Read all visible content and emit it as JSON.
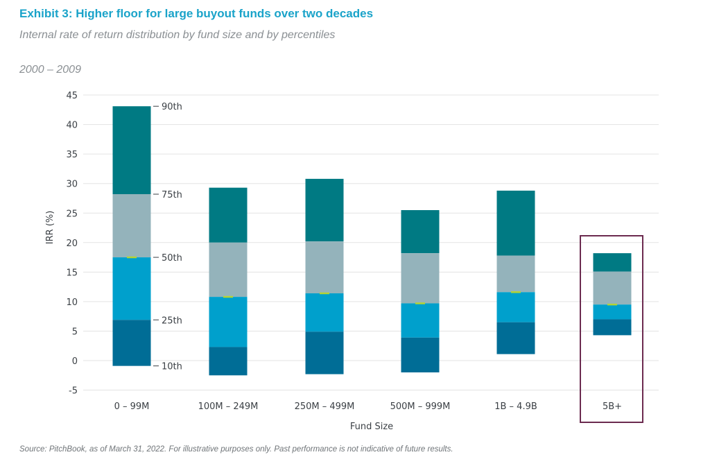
{
  "title": "Exhibit 3: Higher floor for large buyout funds over two decades",
  "subtitle": "Internal rate of return distribution by fund size and by percentiles",
  "period": "2000 – 2009",
  "source": "Source: PitchBook, as of March 31, 2022. For illustrative purposes only. Past performance is not indicative of future results.",
  "chart_data": {
    "type": "bar",
    "subtype": "floating-stacked-percentile",
    "xlabel": "Fund Size",
    "ylabel": "IRR (%)",
    "ylim": [
      -5,
      45
    ],
    "yticks": [
      "45",
      "40",
      "35",
      "30",
      "25",
      "20",
      "15",
      "10",
      "5",
      "0",
      "-5"
    ],
    "grid": true,
    "categories": [
      "0 – 99M",
      "100M – 249M",
      "250M – 499M",
      "500M – 999M",
      "1B – 4.9B",
      "5B+"
    ],
    "percentile_labels": [
      "90th",
      "75th",
      "50th",
      "25th",
      "10th"
    ],
    "series": [
      {
        "name": "90th",
        "values": [
          43.1,
          29.3,
          30.8,
          25.5,
          28.8,
          18.2
        ]
      },
      {
        "name": "75th",
        "values": [
          28.2,
          20.0,
          20.2,
          18.2,
          17.8,
          15.1
        ]
      },
      {
        "name": "50th",
        "values": [
          17.5,
          10.8,
          11.4,
          9.7,
          11.6,
          9.5
        ]
      },
      {
        "name": "25th",
        "values": [
          6.9,
          2.3,
          4.9,
          3.9,
          6.5,
          7.0
        ]
      },
      {
        "name": "10th",
        "values": [
          -0.9,
          -2.5,
          -2.3,
          -2.0,
          1.1,
          4.3
        ]
      }
    ],
    "highlighted_category": "5B+",
    "colors": {
      "p75_p90": "#007a83",
      "p50_p75": "#94b3bb",
      "p25_p50": "#00a0cc",
      "p10_p25": "#006d96",
      "median": "#b5d334",
      "highlight": "#6b2a4f",
      "grid": "#e3e3e3"
    }
  }
}
